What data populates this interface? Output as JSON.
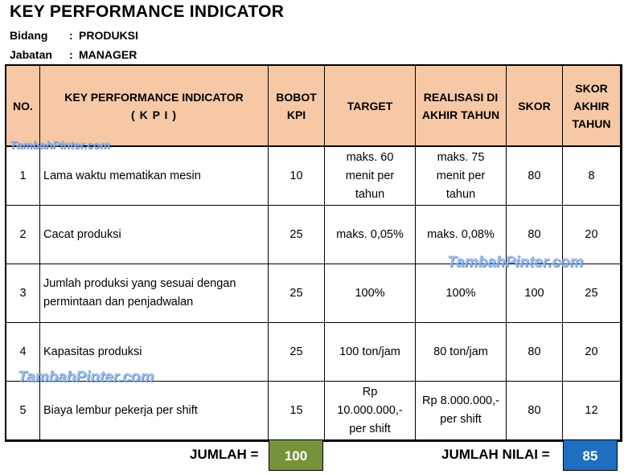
{
  "title": "KEY PERFORMANCE INDICATOR",
  "meta": [
    {
      "key": "Bidang",
      "sep": ":",
      "value": "PRODUKSI"
    },
    {
      "key": "Jabatan",
      "sep": ":",
      "value": "MANAGER"
    }
  ],
  "headers": {
    "no": "NO.",
    "kpi_line1": "KEY PERFORMANCE INDICATOR",
    "kpi_line2": "( K P I )",
    "bobot_line1": "BOBOT",
    "bobot_line2": "KPI",
    "target": "TARGET",
    "realisasi_line1": "REALISASI DI",
    "realisasi_line2": "AKHIR TAHUN",
    "skor": "SKOR",
    "skor_akhir_line1": "SKOR",
    "skor_akhir_line2": "AKHIR",
    "skor_akhir_line3": "TAHUN"
  },
  "rows": [
    {
      "no": "1",
      "kpi": [
        "Lama waktu mematikan mesin"
      ],
      "bobot": "10",
      "target": [
        "maks. 60",
        "menit per",
        "tahun"
      ],
      "realisasi": [
        "maks. 75",
        "menit per",
        "tahun"
      ],
      "skor": "80",
      "skor_akhir": "8"
    },
    {
      "no": "2",
      "kpi": [
        "Cacat produksi"
      ],
      "bobot": "25",
      "target": [
        "maks. 0,05%"
      ],
      "realisasi": [
        "maks. 0,08%"
      ],
      "skor": "80",
      "skor_akhir": "20"
    },
    {
      "no": "3",
      "kpi": [
        "Jumlah produksi yang sesuai dengan",
        "permintaan dan penjadwalan"
      ],
      "bobot": "25",
      "target": [
        "100%"
      ],
      "realisasi": [
        "100%"
      ],
      "skor": "100",
      "skor_akhir": "25"
    },
    {
      "no": "4",
      "kpi": [
        "Kapasitas produksi"
      ],
      "bobot": "25",
      "target": [
        "100 ton/jam"
      ],
      "realisasi": [
        "80 ton/jam"
      ],
      "skor": "80",
      "skor_akhir": "20"
    },
    {
      "no": "5",
      "kpi": [
        "Biaya lembur pekerja per shift"
      ],
      "bobot": "15",
      "target": [
        "Rp",
        "10.000.000,-",
        "per shift"
      ],
      "realisasi": [
        "Rp 8.000.000,-",
        "per shift"
      ],
      "skor": "80",
      "skor_akhir": "12"
    }
  ],
  "footer": {
    "jumlah_label": "JUMLAH =",
    "jumlah_value": "100",
    "jumlah_color": "#76933c",
    "nilai_label": "JUMLAH NILAI =",
    "nilai_value": "85",
    "nilai_color": "#1f6fc0"
  },
  "watermark": "TambahPinter.com",
  "colors": {
    "header_bg": "#f7c8a6"
  }
}
